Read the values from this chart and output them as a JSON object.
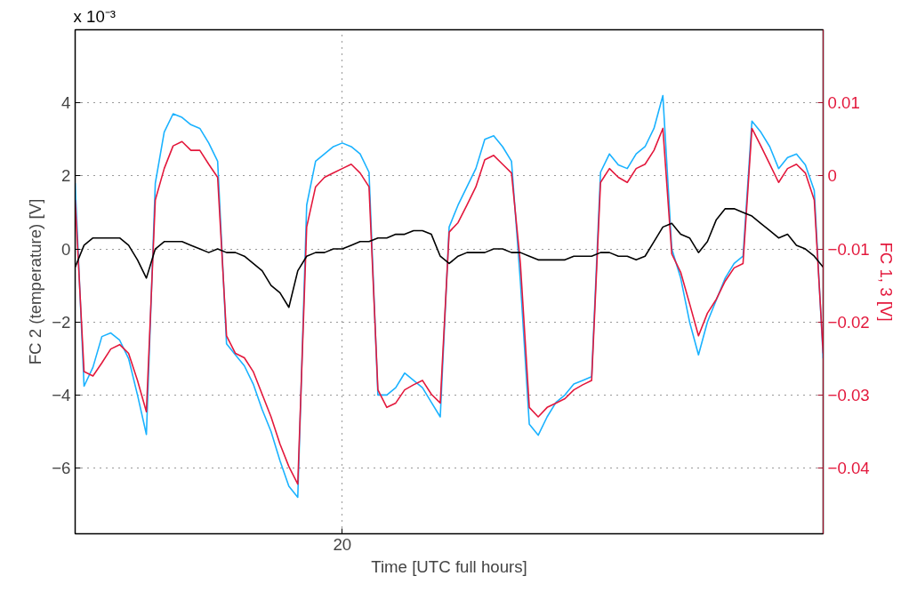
{
  "chart_data": {
    "type": "line",
    "xlabel": "Time [UTC full hours]",
    "ylabel": "FC 2 (temperature) [V]",
    "y2label": "FC 1, 3 [V]",
    "annotations": [
      "x 10⁻³"
    ],
    "categories": [
      null,
      null,
      null,
      null,
      null,
      null,
      null,
      null,
      null,
      null,
      null,
      null,
      null,
      null,
      null,
      null,
      null,
      null,
      null,
      null,
      null,
      null,
      null,
      null,
      null,
      null,
      null,
      null,
      null,
      null,
      "20",
      null,
      null,
      null,
      null,
      null,
      null,
      null,
      null,
      null,
      null,
      null,
      null,
      null,
      null,
      null,
      null,
      null,
      null,
      null,
      null,
      null,
      null,
      null,
      null,
      null,
      null,
      null,
      null,
      null,
      null,
      null,
      null,
      null,
      null,
      null,
      null,
      null,
      null,
      null,
      null,
      null,
      null,
      null,
      null,
      null,
      null,
      null,
      null,
      null,
      null,
      null,
      null,
      null,
      null
    ],
    "ylim": [
      -7.8,
      6
    ],
    "yticks": [
      {
        "value": -6,
        "label": "−6"
      },
      {
        "value": -4,
        "label": "−4"
      },
      {
        "value": -2,
        "label": "−2"
      },
      0,
      2,
      4
    ],
    "y2lim": [
      -0.049,
      0.02
    ],
    "y2ticks": [
      {
        "value": -0.04,
        "label": "−0.04"
      },
      {
        "value": -0.03,
        "label": "−0.03"
      },
      {
        "value": -0.02,
        "label": "−0.02"
      },
      {
        "value": -0.01,
        "label": "−0.01"
      },
      0,
      0.01
    ],
    "grid": true,
    "marker": "none",
    "line_style": "solid",
    "series": [
      {
        "color": "#1ab2ff",
        "axis": "y2",
        "values": [
          -0.001,
          -0.0288,
          -0.0262,
          -0.022,
          -0.0215,
          -0.0225,
          -0.025,
          -0.03,
          -0.0354,
          -0.001,
          0.006,
          0.0085,
          0.008,
          0.007,
          0.0065,
          0.0045,
          0.002,
          -0.023,
          -0.0245,
          -0.026,
          -0.0285,
          -0.032,
          -0.035,
          -0.039,
          -0.0425,
          -0.044,
          -0.004,
          0.002,
          0.003,
          0.004,
          0.0045,
          0.004,
          0.003,
          0.0005,
          -0.03,
          -0.03,
          -0.029,
          -0.027,
          -0.028,
          -0.029,
          -0.031,
          -0.033,
          -0.007,
          -0.004,
          -0.0015,
          0.001,
          0.005,
          0.0055,
          0.004,
          0.002,
          -0.0145,
          -0.034,
          -0.0355,
          -0.033,
          -0.031,
          -0.03,
          -0.0285,
          -0.028,
          -0.0275,
          0.0005,
          0.003,
          0.0015,
          0.001,
          0.003,
          0.004,
          0.0065,
          0.011,
          -0.01,
          -0.014,
          -0.02,
          -0.0245,
          -0.02,
          -0.017,
          -0.014,
          -0.012,
          -0.011,
          0.0075,
          0.006,
          0.004,
          0.001,
          0.0025,
          0.003,
          0.0015,
          -0.002,
          -0.025
        ]
      },
      {
        "color": "#e3183c",
        "axis": "y2",
        "values": [
          -0.0033,
          -0.0268,
          -0.0274,
          -0.0256,
          -0.0237,
          -0.0231,
          -0.0243,
          -0.028,
          -0.0323,
          -0.0033,
          0.001,
          0.0041,
          0.0047,
          0.0035,
          0.0035,
          0.0016,
          -0.0002,
          -0.0219,
          -0.0243,
          -0.0249,
          -0.0268,
          -0.0299,
          -0.033,
          -0.0367,
          -0.0398,
          -0.0422,
          -0.007,
          -0.0015,
          -0.0002,
          0.0004,
          0.001,
          0.0016,
          0.0004,
          -0.0015,
          -0.0293,
          -0.0317,
          -0.0311,
          -0.0293,
          -0.0286,
          -0.028,
          -0.0299,
          -0.0311,
          -0.0077,
          -0.0064,
          -0.004,
          -0.0015,
          0.0022,
          0.0028,
          0.0016,
          0.0004,
          -0.012,
          -0.0317,
          -0.033,
          -0.0317,
          -0.0311,
          -0.0305,
          -0.0293,
          -0.0286,
          -0.028,
          -0.0009,
          0.001,
          -0.0002,
          -0.0009,
          0.001,
          0.0016,
          0.0035,
          0.0065,
          -0.0107,
          -0.0132,
          -0.0175,
          -0.0219,
          -0.0188,
          -0.0169,
          -0.0144,
          -0.0126,
          -0.012,
          0.0065,
          0.0041,
          0.0016,
          -0.0009,
          0.001,
          0.0016,
          0.0004,
          -0.0033,
          -0.0243
        ]
      },
      {
        "color": "#000000",
        "axis": "y",
        "values": [
          -0.5,
          0.1,
          0.3,
          0.3,
          0.3,
          0.3,
          0.1,
          -0.3,
          -0.8,
          0.0,
          0.2,
          0.2,
          0.2,
          0.1,
          0.0,
          -0.1,
          0.0,
          -0.1,
          -0.1,
          -0.2,
          -0.4,
          -0.6,
          -1.0,
          -1.2,
          -1.6,
          -0.6,
          -0.2,
          -0.1,
          -0.1,
          0.0,
          0.0,
          0.1,
          0.2,
          0.2,
          0.3,
          0.3,
          0.4,
          0.4,
          0.5,
          0.5,
          0.4,
          -0.2,
          -0.4,
          -0.2,
          -0.1,
          -0.1,
          -0.1,
          0.0,
          0.0,
          -0.1,
          -0.1,
          -0.2,
          -0.3,
          -0.3,
          -0.3,
          -0.3,
          -0.2,
          -0.2,
          -0.2,
          -0.1,
          -0.1,
          -0.2,
          -0.2,
          -0.3,
          -0.2,
          0.2,
          0.6,
          0.7,
          0.4,
          0.3,
          -0.1,
          0.2,
          0.8,
          1.1,
          1.1,
          1.0,
          0.9,
          0.7,
          0.5,
          0.3,
          0.4,
          0.1,
          0.0,
          -0.2,
          -0.5
        ]
      }
    ]
  }
}
